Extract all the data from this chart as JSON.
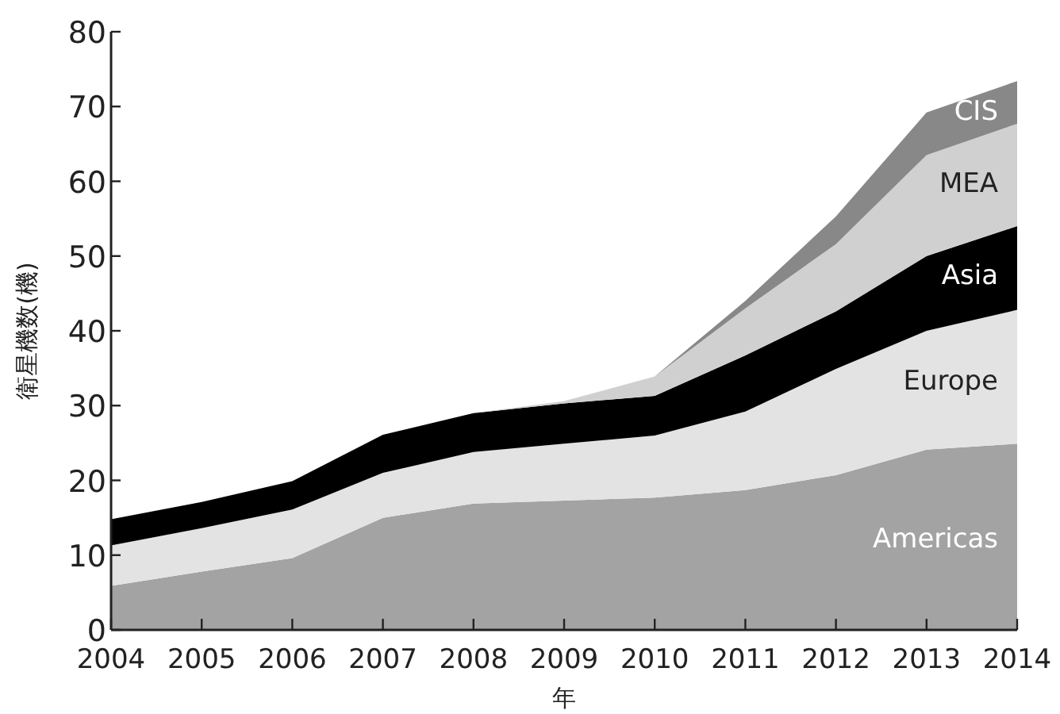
{
  "chart_data": {
    "type": "area",
    "stacked": true,
    "ylabel": "衛星機数(機)",
    "xlabel": "年",
    "x": [
      2004,
      2005,
      2006,
      2007,
      2008,
      2009,
      2010,
      2011,
      2012,
      2013,
      2014
    ],
    "xlim": [
      2004,
      2014
    ],
    "xticks": [
      2004,
      2005,
      2006,
      2007,
      2008,
      2009,
      2010,
      2011,
      2012,
      2013,
      2014
    ],
    "ylim": [
      0,
      80
    ],
    "yticks": [
      0,
      10,
      20,
      30,
      40,
      50,
      60,
      70,
      80
    ],
    "series": [
      {
        "name": "Americas",
        "color": "#a3a3a3",
        "values": [
          5.9,
          7.8,
          9.6,
          15.0,
          16.9,
          17.3,
          17.7,
          18.7,
          20.7,
          24.1,
          24.9
        ]
      },
      {
        "name": "Europe",
        "color": "#e3e3e3",
        "values": [
          5.4,
          5.8,
          6.5,
          6.0,
          6.9,
          7.6,
          8.3,
          10.5,
          14.2,
          15.9,
          17.9
        ]
      },
      {
        "name": "Asia",
        "color": "#000000",
        "values": [
          3.5,
          3.5,
          3.8,
          5.1,
          5.2,
          5.4,
          5.3,
          7.5,
          7.7,
          10.0,
          11.2
        ]
      },
      {
        "name": "MEA",
        "color": "#d0d0d0",
        "values": [
          0,
          0,
          0,
          0,
          0,
          0.3,
          2.6,
          6.3,
          9.0,
          13.5,
          13.7
        ]
      },
      {
        "name": "CIS",
        "color": "#888888",
        "values": [
          0,
          0,
          0,
          0,
          0,
          0,
          0,
          1.0,
          3.7,
          5.7,
          5.7
        ]
      }
    ]
  }
}
